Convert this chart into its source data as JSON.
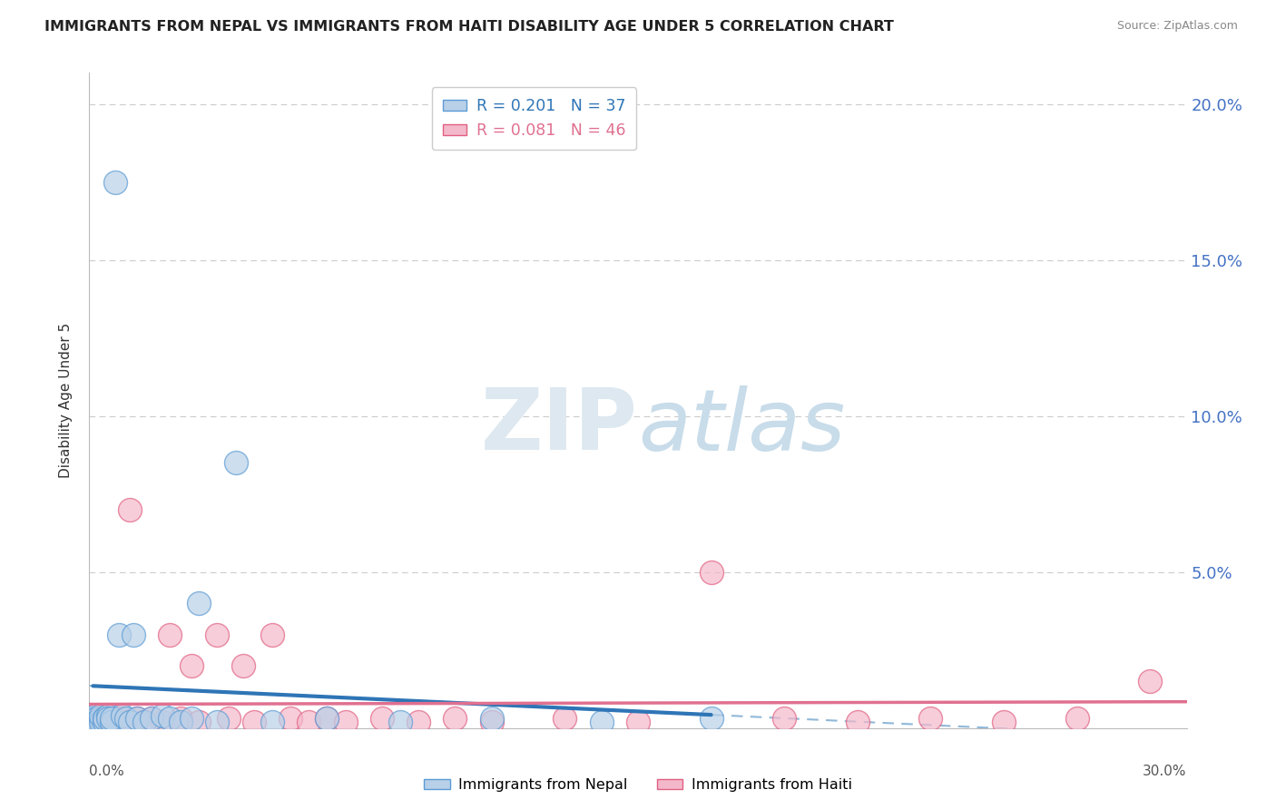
{
  "title": "IMMIGRANTS FROM NEPAL VS IMMIGRANTS FROM HAITI DISABILITY AGE UNDER 5 CORRELATION CHART",
  "source": "Source: ZipAtlas.com",
  "ylabel": "Disability Age Under 5",
  "xlim": [
    0.0,
    0.3
  ],
  "ylim": [
    0.0,
    0.21
  ],
  "ytick_vals": [
    0.0,
    0.05,
    0.1,
    0.15,
    0.2
  ],
  "ytick_labels": [
    "",
    "5.0%",
    "10.0%",
    "15.0%",
    "20.0%"
  ],
  "nepal_R": 0.201,
  "nepal_N": 37,
  "haiti_R": 0.081,
  "haiti_N": 46,
  "nepal_color": "#b8d0e8",
  "nepal_edge_color": "#5b9bd5",
  "nepal_line_color": "#2e75b6",
  "haiti_color": "#f4b8cb",
  "haiti_edge_color": "#e06080",
  "haiti_line_color": "#e07090",
  "trendline_dashed_color": "#90b8d8",
  "background_color": "#ffffff",
  "grid_color": "#cccccc",
  "nepal_x": [
    0.001,
    0.001,
    0.002,
    0.002,
    0.002,
    0.003,
    0.003,
    0.003,
    0.004,
    0.004,
    0.004,
    0.005,
    0.005,
    0.006,
    0.006,
    0.007,
    0.008,
    0.009,
    0.01,
    0.011,
    0.012,
    0.013,
    0.015,
    0.017,
    0.02,
    0.022,
    0.025,
    0.028,
    0.03,
    0.035,
    0.04,
    0.05,
    0.065,
    0.085,
    0.11,
    0.14,
    0.17
  ],
  "nepal_y": [
    0.003,
    0.002,
    0.004,
    0.003,
    0.002,
    0.003,
    0.002,
    0.004,
    0.003,
    0.002,
    0.003,
    0.004,
    0.003,
    0.002,
    0.003,
    0.175,
    0.03,
    0.004,
    0.003,
    0.002,
    0.03,
    0.003,
    0.002,
    0.003,
    0.004,
    0.003,
    0.002,
    0.003,
    0.04,
    0.002,
    0.085,
    0.002,
    0.003,
    0.002,
    0.003,
    0.002,
    0.003
  ],
  "haiti_x": [
    0.001,
    0.002,
    0.002,
    0.003,
    0.003,
    0.004,
    0.004,
    0.005,
    0.005,
    0.006,
    0.006,
    0.007,
    0.008,
    0.009,
    0.01,
    0.011,
    0.013,
    0.015,
    0.017,
    0.02,
    0.022,
    0.025,
    0.028,
    0.03,
    0.035,
    0.038,
    0.042,
    0.045,
    0.05,
    0.055,
    0.06,
    0.065,
    0.07,
    0.08,
    0.09,
    0.1,
    0.11,
    0.13,
    0.15,
    0.17,
    0.19,
    0.21,
    0.23,
    0.25,
    0.27,
    0.29
  ],
  "haiti_y": [
    0.002,
    0.003,
    0.002,
    0.003,
    0.002,
    0.003,
    0.002,
    0.003,
    0.002,
    0.003,
    0.002,
    0.003,
    0.002,
    0.003,
    0.002,
    0.07,
    0.003,
    0.002,
    0.003,
    0.002,
    0.03,
    0.003,
    0.02,
    0.002,
    0.03,
    0.003,
    0.02,
    0.002,
    0.03,
    0.003,
    0.002,
    0.003,
    0.002,
    0.003,
    0.002,
    0.003,
    0.002,
    0.003,
    0.002,
    0.05,
    0.003,
    0.002,
    0.003,
    0.002,
    0.003,
    0.015
  ]
}
